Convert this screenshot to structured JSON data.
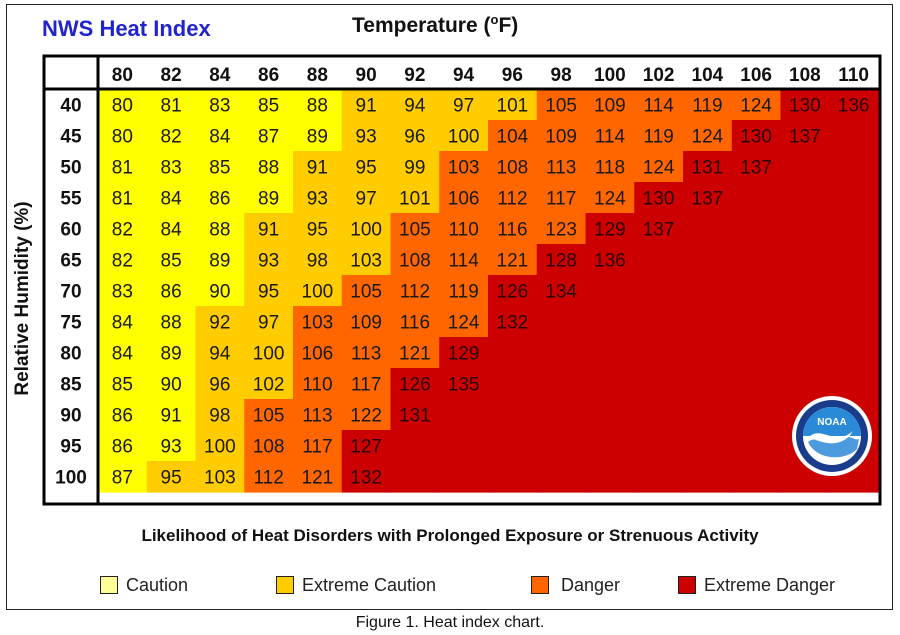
{
  "title": "NWS Heat Index",
  "temperature_label": "Temperature (",
  "temperature_unit_sup": "o",
  "temperature_label_end": "F)",
  "likelihood_text": "Likelihood of Heat Disorders with Prolonged Exposure or Strenuous Activity",
  "caption": "Figure 1. Heat index chart.",
  "logo_text": "NOAA",
  "legend": [
    {
      "label": "Caution",
      "color": "#ffff99"
    },
    {
      "label": "Extreme Caution",
      "color": "#ffcc00"
    },
    {
      "label": "Danger",
      "color": "#ff6600"
    },
    {
      "label": "Extreme Danger",
      "color": "#cc0000"
    }
  ],
  "chart_data": {
    "type": "heatmap",
    "title": "NWS Heat Index",
    "xlabel": "Temperature (°F)",
    "ylabel": "Relative Humidity (%)",
    "x": [
      80,
      82,
      84,
      86,
      88,
      90,
      92,
      94,
      96,
      98,
      100,
      102,
      104,
      106,
      108,
      110
    ],
    "y": [
      40,
      45,
      50,
      55,
      60,
      65,
      70,
      75,
      80,
      85,
      90,
      95,
      100
    ],
    "values": [
      [
        80,
        81,
        83,
        85,
        88,
        91,
        94,
        97,
        101,
        105,
        109,
        114,
        119,
        124,
        130,
        136
      ],
      [
        80,
        82,
        84,
        87,
        89,
        93,
        96,
        100,
        104,
        109,
        114,
        119,
        124,
        130,
        137,
        null
      ],
      [
        81,
        83,
        85,
        88,
        91,
        95,
        99,
        103,
        108,
        113,
        118,
        124,
        131,
        137,
        null,
        null
      ],
      [
        81,
        84,
        86,
        89,
        93,
        97,
        101,
        106,
        112,
        117,
        124,
        130,
        137,
        null,
        null,
        null
      ],
      [
        82,
        84,
        88,
        91,
        95,
        100,
        105,
        110,
        116,
        123,
        129,
        137,
        null,
        null,
        null,
        null
      ],
      [
        82,
        85,
        89,
        93,
        98,
        103,
        108,
        114,
        121,
        128,
        136,
        null,
        null,
        null,
        null,
        null
      ],
      [
        83,
        86,
        90,
        95,
        100,
        105,
        112,
        119,
        126,
        134,
        null,
        null,
        null,
        null,
        null,
        null
      ],
      [
        84,
        88,
        92,
        97,
        103,
        109,
        116,
        124,
        132,
        null,
        null,
        null,
        null,
        null,
        null,
        null
      ],
      [
        84,
        89,
        94,
        100,
        106,
        113,
        121,
        129,
        null,
        null,
        null,
        null,
        null,
        null,
        null,
        null
      ],
      [
        85,
        90,
        96,
        102,
        110,
        117,
        126,
        135,
        null,
        null,
        null,
        null,
        null,
        null,
        null,
        null
      ],
      [
        86,
        91,
        98,
        105,
        113,
        122,
        131,
        null,
        null,
        null,
        null,
        null,
        null,
        null,
        null,
        null
      ],
      [
        86,
        93,
        100,
        108,
        117,
        127,
        null,
        null,
        null,
        null,
        null,
        null,
        null,
        null,
        null,
        null
      ],
      [
        87,
        95,
        103,
        112,
        121,
        132,
        null,
        null,
        null,
        null,
        null,
        null,
        null,
        null,
        null,
        null
      ]
    ],
    "categories": [
      {
        "label": "Caution",
        "color": "#ffff99"
      },
      {
        "label": "Extreme Caution",
        "color": "#ffcc00"
      },
      {
        "label": "Danger",
        "color": "#ff6600"
      },
      {
        "label": "Extreme Danger",
        "color": "#cc0000"
      }
    ],
    "cell_category": [
      [
        0,
        0,
        0,
        0,
        0,
        1,
        1,
        1,
        1,
        2,
        2,
        2,
        2,
        2,
        3,
        3
      ],
      [
        0,
        0,
        0,
        0,
        0,
        1,
        1,
        1,
        2,
        2,
        2,
        2,
        2,
        3,
        3,
        3
      ],
      [
        0,
        0,
        0,
        0,
        1,
        1,
        1,
        2,
        2,
        2,
        2,
        2,
        3,
        3,
        3,
        3
      ],
      [
        0,
        0,
        0,
        0,
        1,
        1,
        1,
        2,
        2,
        2,
        2,
        3,
        3,
        3,
        3,
        3
      ],
      [
        0,
        0,
        0,
        1,
        1,
        1,
        2,
        2,
        2,
        2,
        3,
        3,
        3,
        3,
        3,
        3
      ],
      [
        0,
        0,
        0,
        1,
        1,
        1,
        2,
        2,
        2,
        3,
        3,
        3,
        3,
        3,
        3,
        3
      ],
      [
        0,
        0,
        0,
        1,
        1,
        2,
        2,
        2,
        3,
        3,
        3,
        3,
        3,
        3,
        3,
        3
      ],
      [
        0,
        0,
        1,
        1,
        2,
        2,
        2,
        2,
        3,
        3,
        3,
        3,
        3,
        3,
        3,
        3
      ],
      [
        0,
        0,
        1,
        1,
        2,
        2,
        2,
        3,
        3,
        3,
        3,
        3,
        3,
        3,
        3,
        3
      ],
      [
        0,
        0,
        1,
        1,
        2,
        2,
        3,
        3,
        3,
        3,
        3,
        3,
        3,
        3,
        3,
        3
      ],
      [
        0,
        0,
        1,
        2,
        2,
        2,
        3,
        3,
        3,
        3,
        3,
        3,
        3,
        3,
        3,
        3
      ],
      [
        0,
        0,
        1,
        2,
        2,
        3,
        3,
        3,
        3,
        3,
        3,
        3,
        3,
        3,
        3,
        3
      ],
      [
        0,
        1,
        1,
        2,
        2,
        3,
        3,
        3,
        3,
        3,
        3,
        3,
        3,
        3,
        3,
        3
      ]
    ],
    "colors": {
      "caution_cell": "#ffff00",
      "extreme_caution_cell": "#ffcc00",
      "danger_cell": "#ff6600",
      "extreme_danger_cell": "#cc0000"
    }
  }
}
